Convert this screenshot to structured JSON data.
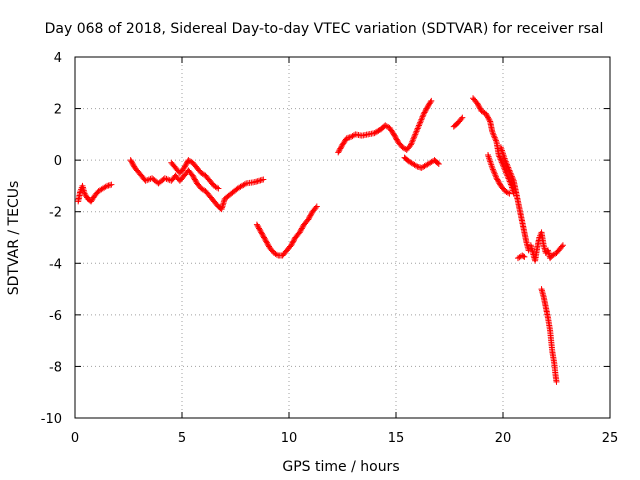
{
  "chart_data": {
    "type": "scatter",
    "title": "Day 068 of 2018, Sidereal Day-to-day VTEC variation (SDTVAR) for receiver rsal",
    "xlabel": "GPS time / hours",
    "ylabel": "SDTVAR / TECUs",
    "xlim": [
      0,
      25
    ],
    "ylim": [
      -10,
      4
    ],
    "xticks": [
      0,
      5,
      10,
      15,
      20,
      25
    ],
    "yticks": [
      -10,
      -8,
      -6,
      -4,
      -2,
      0,
      2,
      4
    ],
    "grid": true,
    "marker": "+",
    "color": "#ff0000",
    "series": [
      {
        "name": "SDTVAR",
        "segments": [
          [
            [
              0.15,
              -1.6
            ],
            [
              0.25,
              -1.2
            ],
            [
              0.35,
              -1.0
            ],
            [
              0.45,
              -1.3
            ],
            [
              0.6,
              -1.5
            ],
            [
              0.75,
              -1.6
            ],
            [
              0.9,
              -1.4
            ],
            [
              1.1,
              -1.2
            ],
            [
              1.3,
              -1.1
            ],
            [
              1.5,
              -1.0
            ],
            [
              1.7,
              -0.95
            ]
          ],
          [
            [
              2.6,
              0.0
            ],
            [
              2.8,
              -0.3
            ],
            [
              3.0,
              -0.5
            ],
            [
              3.3,
              -0.8
            ],
            [
              3.6,
              -0.7
            ],
            [
              3.9,
              -0.9
            ],
            [
              4.2,
              -0.7
            ],
            [
              4.5,
              -0.8
            ],
            [
              4.7,
              -0.6
            ],
            [
              4.9,
              -0.8
            ],
            [
              5.1,
              -0.6
            ],
            [
              5.3,
              -0.4
            ],
            [
              5.5,
              -0.6
            ],
            [
              5.7,
              -0.9
            ],
            [
              5.9,
              -1.1
            ],
            [
              6.1,
              -1.2
            ],
            [
              6.3,
              -1.4
            ],
            [
              6.5,
              -1.6
            ],
            [
              6.7,
              -1.8
            ],
            [
              6.85,
              -1.9
            ],
            [
              7.0,
              -1.5
            ],
            [
              7.3,
              -1.3
            ],
            [
              7.6,
              -1.1
            ],
            [
              8.0,
              -0.9
            ],
            [
              8.4,
              -0.85
            ],
            [
              8.8,
              -0.75
            ]
          ],
          [
            [
              4.5,
              -0.1
            ],
            [
              4.7,
              -0.3
            ],
            [
              4.9,
              -0.5
            ],
            [
              5.1,
              -0.3
            ],
            [
              5.3,
              0.0
            ],
            [
              5.5,
              -0.1
            ],
            [
              5.7,
              -0.3
            ],
            [
              5.9,
              -0.5
            ],
            [
              6.1,
              -0.6
            ],
            [
              6.3,
              -0.8
            ],
            [
              6.5,
              -1.0
            ],
            [
              6.7,
              -1.1
            ]
          ],
          [
            [
              8.5,
              -2.5
            ],
            [
              8.7,
              -2.8
            ],
            [
              8.9,
              -3.1
            ],
            [
              9.1,
              -3.4
            ],
            [
              9.3,
              -3.6
            ],
            [
              9.5,
              -3.7
            ],
            [
              9.7,
              -3.7
            ],
            [
              9.9,
              -3.5
            ],
            [
              10.1,
              -3.3
            ],
            [
              10.3,
              -3.0
            ],
            [
              10.5,
              -2.8
            ],
            [
              10.7,
              -2.5
            ],
            [
              10.9,
              -2.3
            ],
            [
              11.1,
              -2.0
            ],
            [
              11.3,
              -1.8
            ]
          ],
          [
            [
              12.3,
              0.3
            ],
            [
              12.5,
              0.6
            ],
            [
              12.7,
              0.85
            ],
            [
              12.9,
              0.9
            ],
            [
              13.1,
              1.0
            ],
            [
              13.4,
              0.95
            ],
            [
              13.7,
              1.0
            ],
            [
              14.0,
              1.05
            ],
            [
              14.3,
              1.2
            ],
            [
              14.5,
              1.35
            ],
            [
              14.7,
              1.25
            ],
            [
              14.9,
              1.0
            ],
            [
              15.1,
              0.7
            ],
            [
              15.3,
              0.5
            ],
            [
              15.5,
              0.4
            ],
            [
              15.7,
              0.6
            ],
            [
              15.9,
              1.0
            ],
            [
              16.1,
              1.4
            ],
            [
              16.3,
              1.8
            ],
            [
              16.5,
              2.1
            ],
            [
              16.65,
              2.3
            ]
          ],
          [
            [
              15.4,
              0.1
            ],
            [
              15.6,
              -0.05
            ],
            [
              15.8,
              -0.15
            ],
            [
              16.0,
              -0.25
            ],
            [
              16.2,
              -0.3
            ],
            [
              16.4,
              -0.2
            ],
            [
              16.6,
              -0.1
            ],
            [
              16.8,
              0.0
            ],
            [
              17.0,
              -0.15
            ]
          ],
          [
            [
              17.7,
              1.3
            ],
            [
              17.9,
              1.45
            ],
            [
              18.1,
              1.65
            ]
          ],
          [
            [
              18.6,
              2.4
            ],
            [
              18.8,
              2.2
            ],
            [
              19.0,
              1.9
            ],
            [
              19.2,
              1.8
            ],
            [
              19.4,
              1.5
            ],
            [
              19.5,
              1.1
            ],
            [
              19.7,
              0.7
            ],
            [
              19.8,
              0.2
            ],
            [
              20.0,
              -0.2
            ],
            [
              20.2,
              -0.6
            ],
            [
              20.4,
              -1.0
            ],
            [
              20.5,
              -1.3
            ]
          ],
          [
            [
              19.3,
              0.2
            ],
            [
              19.5,
              -0.3
            ],
            [
              19.7,
              -0.7
            ],
            [
              19.9,
              -1.0
            ],
            [
              20.1,
              -1.2
            ],
            [
              20.3,
              -1.3
            ]
          ],
          [
            [
              19.9,
              0.5
            ],
            [
              20.1,
              0.0
            ],
            [
              20.3,
              -0.4
            ],
            [
              20.5,
              -0.8
            ],
            [
              20.6,
              -1.2
            ],
            [
              20.7,
              -1.6
            ],
            [
              20.8,
              -2.0
            ],
            [
              20.9,
              -2.4
            ],
            [
              21.0,
              -2.8
            ],
            [
              21.1,
              -3.2
            ],
            [
              21.2,
              -3.5
            ]
          ],
          [
            [
              20.7,
              -3.8
            ],
            [
              20.9,
              -3.7
            ],
            [
              21.0,
              -3.75
            ]
          ],
          [
            [
              21.3,
              -3.3
            ],
            [
              21.4,
              -3.6
            ],
            [
              21.5,
              -3.9
            ],
            [
              21.6,
              -3.4
            ],
            [
              21.7,
              -3.0
            ],
            [
              21.8,
              -2.8
            ],
            [
              21.9,
              -3.3
            ],
            [
              22.0,
              -3.6
            ],
            [
              22.1,
              -3.5
            ],
            [
              22.2,
              -3.8
            ],
            [
              22.3,
              -3.7
            ],
            [
              22.5,
              -3.6
            ],
            [
              22.7,
              -3.4
            ],
            [
              22.8,
              -3.3
            ]
          ],
          [
            [
              21.8,
              -5.0
            ],
            [
              21.9,
              -5.3
            ],
            [
              22.0,
              -5.7
            ],
            [
              22.1,
              -6.1
            ],
            [
              22.2,
              -6.6
            ],
            [
              22.25,
              -7.0
            ],
            [
              22.3,
              -7.4
            ],
            [
              22.4,
              -7.9
            ],
            [
              22.45,
              -8.3
            ],
            [
              22.5,
              -8.6
            ]
          ]
        ]
      }
    ]
  }
}
